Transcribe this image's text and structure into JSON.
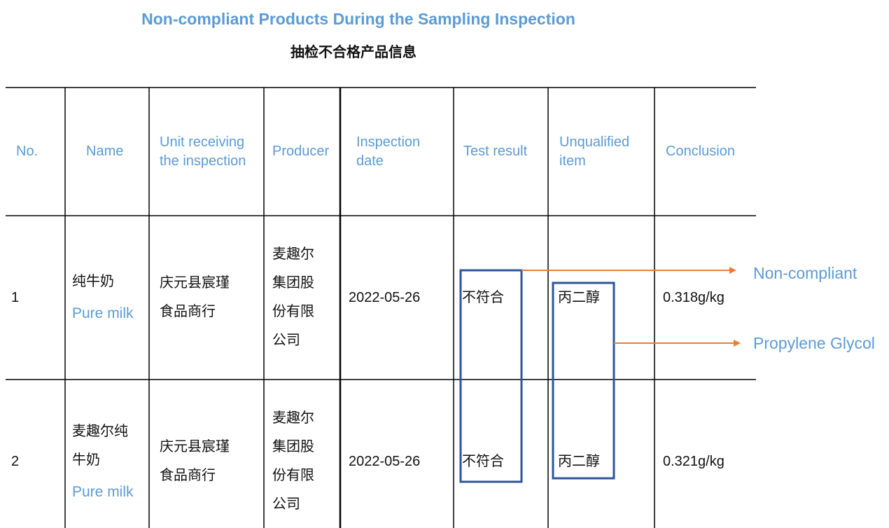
{
  "header": {
    "title": "Non-compliant Products During the Sampling Inspection",
    "subtitle": "抽检不合格产品信息"
  },
  "table": {
    "columns": [
      "No.",
      "Name",
      "Unit receiving the inspection",
      "Producer",
      "Inspection date",
      "Test result",
      "Unqualified item",
      "Conclusion"
    ],
    "rows": [
      {
        "no": "1",
        "name": "纯牛奶",
        "name_en": "Pure milk",
        "unit": "庆元县宸瑾食品商行",
        "producer": "麦趣尔集团股份有限公司",
        "date": "2022-05-26",
        "result": "不符合",
        "item": "丙二醇",
        "conclusion": "0.318g/kg"
      },
      {
        "no": "2",
        "name": "麦趣尔纯牛奶",
        "name_en": "Pure milk",
        "unit": "庆元县宸瑾食品商行",
        "producer": "麦趣尔集团股份有限公司",
        "date": "2022-05-26",
        "result": "不符合",
        "item": "丙二醇",
        "conclusion": "0.321g/kg"
      }
    ]
  },
  "annotations": [
    "Non-compliant",
    "Propylene Glycol"
  ]
}
